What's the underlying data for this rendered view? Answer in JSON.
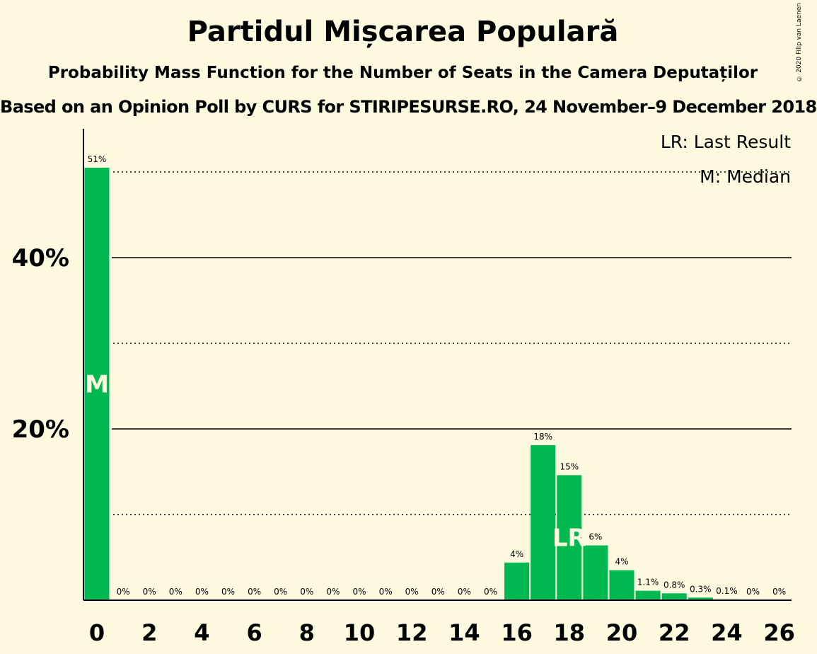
{
  "header": {
    "title": "Partidul Mișcarea Populară",
    "subtitle": "Probability Mass Function for the Number of Seats in the Camera Deputaților",
    "subtitle2": "Based on an Opinion Poll by CURS for STIRIPESURSE.RO, 24 November–9 December 2018",
    "copyright": "© 2020 Filip van Laenen"
  },
  "legend": {
    "last_result": "LR: Last Result",
    "median": "M: Median"
  },
  "chart_data": {
    "type": "bar",
    "x": [
      0,
      1,
      2,
      3,
      4,
      5,
      6,
      7,
      8,
      9,
      10,
      11,
      12,
      13,
      14,
      15,
      16,
      17,
      18,
      19,
      20,
      21,
      22,
      23,
      24,
      25,
      26
    ],
    "values": [
      50.5,
      0,
      0,
      0,
      0,
      0,
      0,
      0,
      0,
      0,
      0,
      0,
      0,
      0,
      0,
      0,
      4.4,
      18.1,
      14.6,
      6.4,
      3.5,
      1.1,
      0.8,
      0.3,
      0.1,
      0,
      0
    ],
    "labels": [
      "51%",
      "0%",
      "0%",
      "0%",
      "0%",
      "0%",
      "0%",
      "0%",
      "0%",
      "0%",
      "0%",
      "0%",
      "0%",
      "0%",
      "0%",
      "0%",
      "4%",
      "18%",
      "15%",
      "6%",
      "4%",
      "1.1%",
      "0.8%",
      "0.3%",
      "0.1%",
      "0%",
      "0%"
    ],
    "x_tick_labels": [
      "0",
      "2",
      "4",
      "6",
      "8",
      "10",
      "12",
      "14",
      "16",
      "18",
      "20",
      "22",
      "24",
      "26"
    ],
    "y_tick_labels": [
      "20%",
      "40%"
    ],
    "y_major_ticks": [
      20,
      40
    ],
    "y_minor_ticks": [
      10,
      30,
      50
    ],
    "ylim": [
      0,
      55
    ],
    "median_seat": 0,
    "median_label": "M",
    "last_result_seat": 18,
    "last_result_label": "LR",
    "bar_color": "#00B850",
    "background_color": "#FFF9E0",
    "legend_position": "top-right"
  }
}
